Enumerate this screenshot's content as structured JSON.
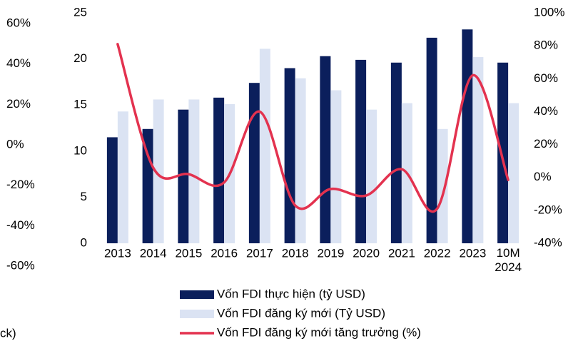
{
  "chart_data": {
    "type": "bar_line",
    "categories": [
      "2013",
      "2014",
      "2015",
      "2016",
      "2017",
      "2018",
      "2019",
      "2020",
      "2021",
      "2022",
      "2023",
      "10M 2024"
    ],
    "series": [
      {
        "name": "Vốn FDI thực hiện (tỷ USD)",
        "color": "#0b1f5c",
        "kind": "bar",
        "values": [
          11.5,
          12.4,
          14.5,
          15.8,
          17.4,
          19.0,
          20.3,
          19.9,
          19.6,
          22.3,
          23.2,
          19.6
        ]
      },
      {
        "name": "Vốn FDI đăng ký mới (Tỷ USD)",
        "color": "#dbe3f3",
        "kind": "bar",
        "values": [
          14.3,
          15.6,
          15.6,
          15.1,
          21.1,
          17.9,
          16.6,
          14.5,
          15.2,
          12.4,
          20.2,
          15.2
        ]
      },
      {
        "name": "Vốn FDI đăng ký mới tăng trưởng (%)",
        "color": "#e3324f",
        "kind": "line",
        "axis": "y2",
        "values": [
          81,
          6,
          2,
          -3,
          40,
          -17,
          -7,
          -11,
          5,
          -19,
          62,
          -1.5
        ]
      }
    ],
    "ylim": [
      0,
      25
    ],
    "yticks": [
      0,
      5,
      10,
      15,
      20,
      25
    ],
    "y2lim": [
      -40,
      100
    ],
    "y2ticks": [
      {
        "value": -40,
        "label": "-40%"
      },
      {
        "value": -20,
        "label": "-20%"
      },
      {
        "value": 0,
        "label": "0%"
      },
      {
        "value": 20,
        "label": "20%"
      },
      {
        "value": 40,
        "label": "40%"
      },
      {
        "value": 60,
        "label": "60%"
      },
      {
        "value": 80,
        "label": "80%"
      },
      {
        "value": 100,
        "label": "100%"
      }
    ],
    "stray_axis": {
      "lim": [
        -60,
        60
      ],
      "ticks": [
        {
          "value": -60,
          "label": "-60%"
        },
        {
          "value": -40,
          "label": "-40%"
        },
        {
          "value": -20,
          "label": "-20%"
        },
        {
          "value": 0,
          "label": "0%"
        },
        {
          "value": 20,
          "label": "20%"
        },
        {
          "value": 40,
          "label": "40%"
        },
        {
          "value": 60,
          "label": "60%"
        }
      ]
    },
    "fragment": "ck)"
  }
}
